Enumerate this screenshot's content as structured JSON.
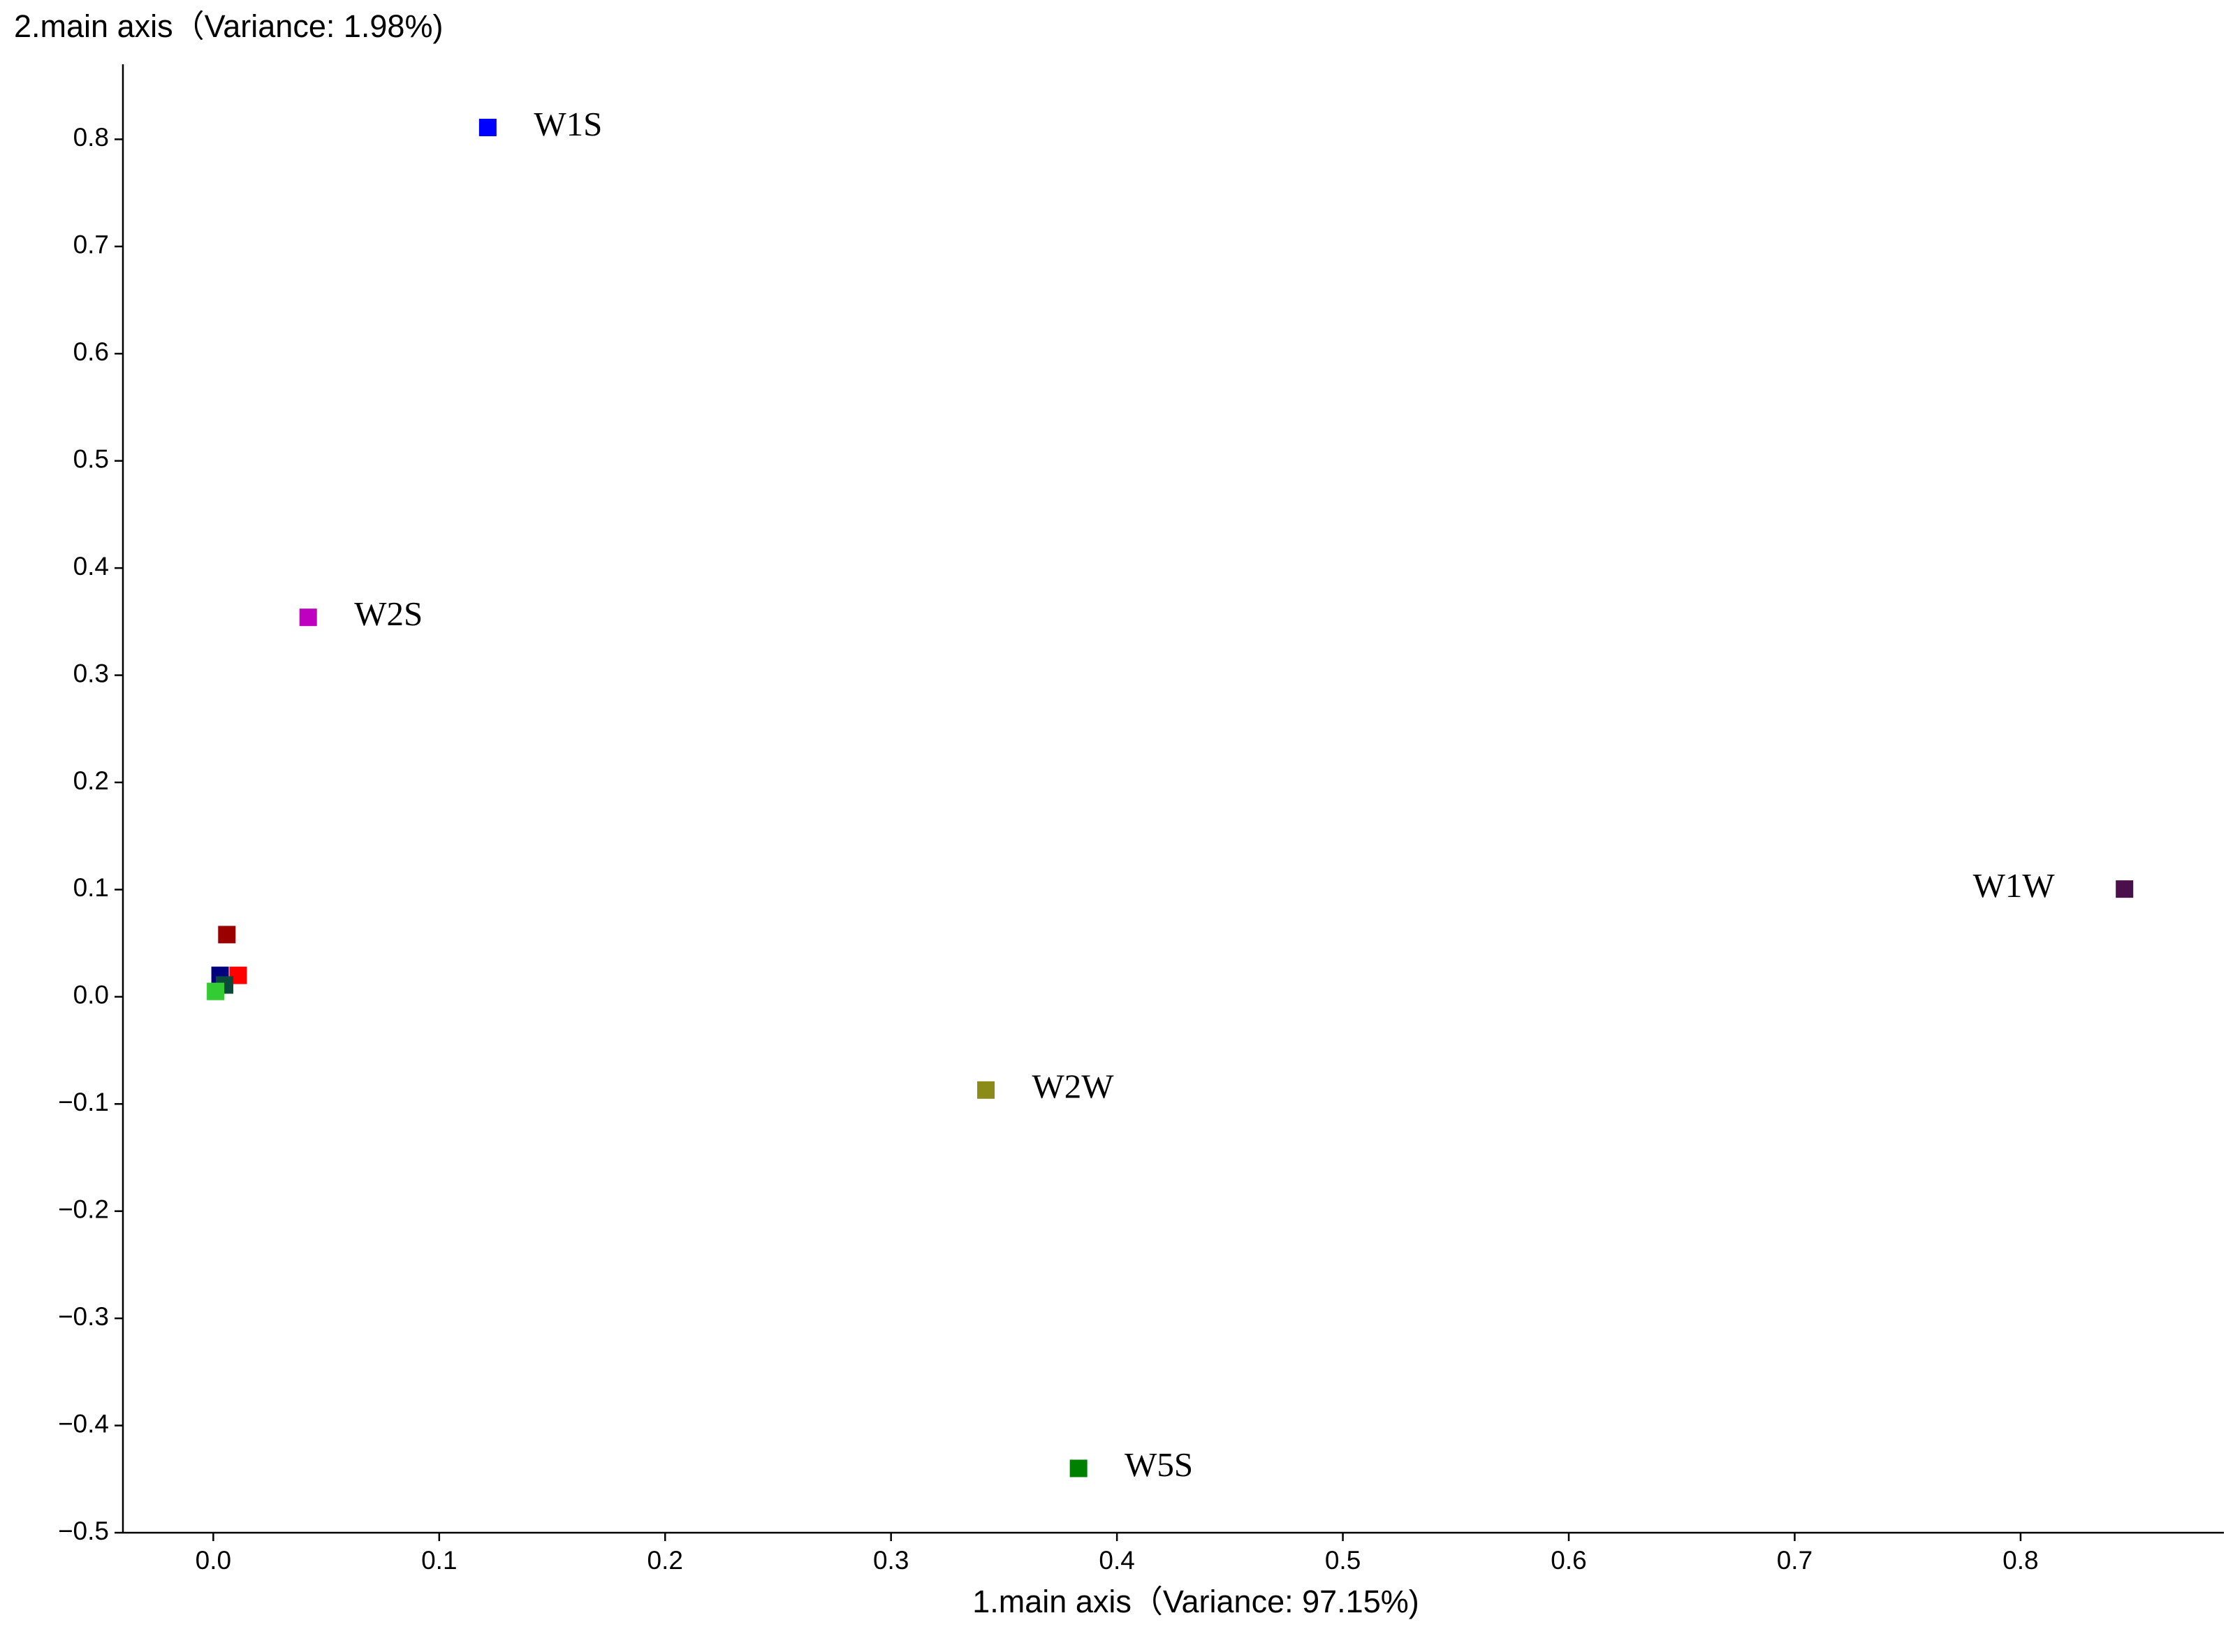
{
  "chart_data": {
    "type": "scatter",
    "title": "2.main axis（Variance: 1.98%)",
    "xlabel": "1.main axis（Variance: 97.15%)",
    "labels": [
      "W1S",
      "W2S",
      "W1W",
      "W2W",
      "W5S",
      null,
      null,
      null,
      null,
      null
    ],
    "x": [
      0.1215,
      0.042,
      0.846,
      0.342,
      0.383,
      0.006,
      0.011,
      0.003,
      0.005,
      0.001
    ],
    "y": [
      0.811,
      0.354,
      0.1005,
      -0.087,
      -0.44,
      0.058,
      0.02,
      0.02,
      0.011,
      0.005
    ],
    "colors": [
      "#0000ff",
      "#c000c0",
      "#4b0f4b",
      "#8b8b1a",
      "#008000",
      "#9b0000",
      "#ff0000",
      "#00007f",
      "#0a4a3a",
      "#33cc33"
    ],
    "xlim": [
      -0.04,
      0.89
    ],
    "ylim": [
      -0.5,
      0.87
    ],
    "xticks": [
      {
        "value": 0.0,
        "label": "0.0"
      },
      0.1,
      0.2,
      0.3,
      0.4,
      0.5,
      0.6,
      0.7,
      0.8
    ],
    "yticks": [
      {
        "value": -0.5,
        "label": "−0.5"
      },
      {
        "value": -0.4,
        "label": "−0.4"
      },
      {
        "value": -0.3,
        "label": "−0.3"
      },
      {
        "value": -0.2,
        "label": "−0.2"
      },
      {
        "value": -0.1,
        "label": "−0.1"
      },
      {
        "value": 0.0,
        "label": "0.0"
      },
      0.1,
      0.2,
      0.3,
      0.4,
      0.5,
      0.6,
      0.7,
      0.8
    ],
    "grid": false
  }
}
